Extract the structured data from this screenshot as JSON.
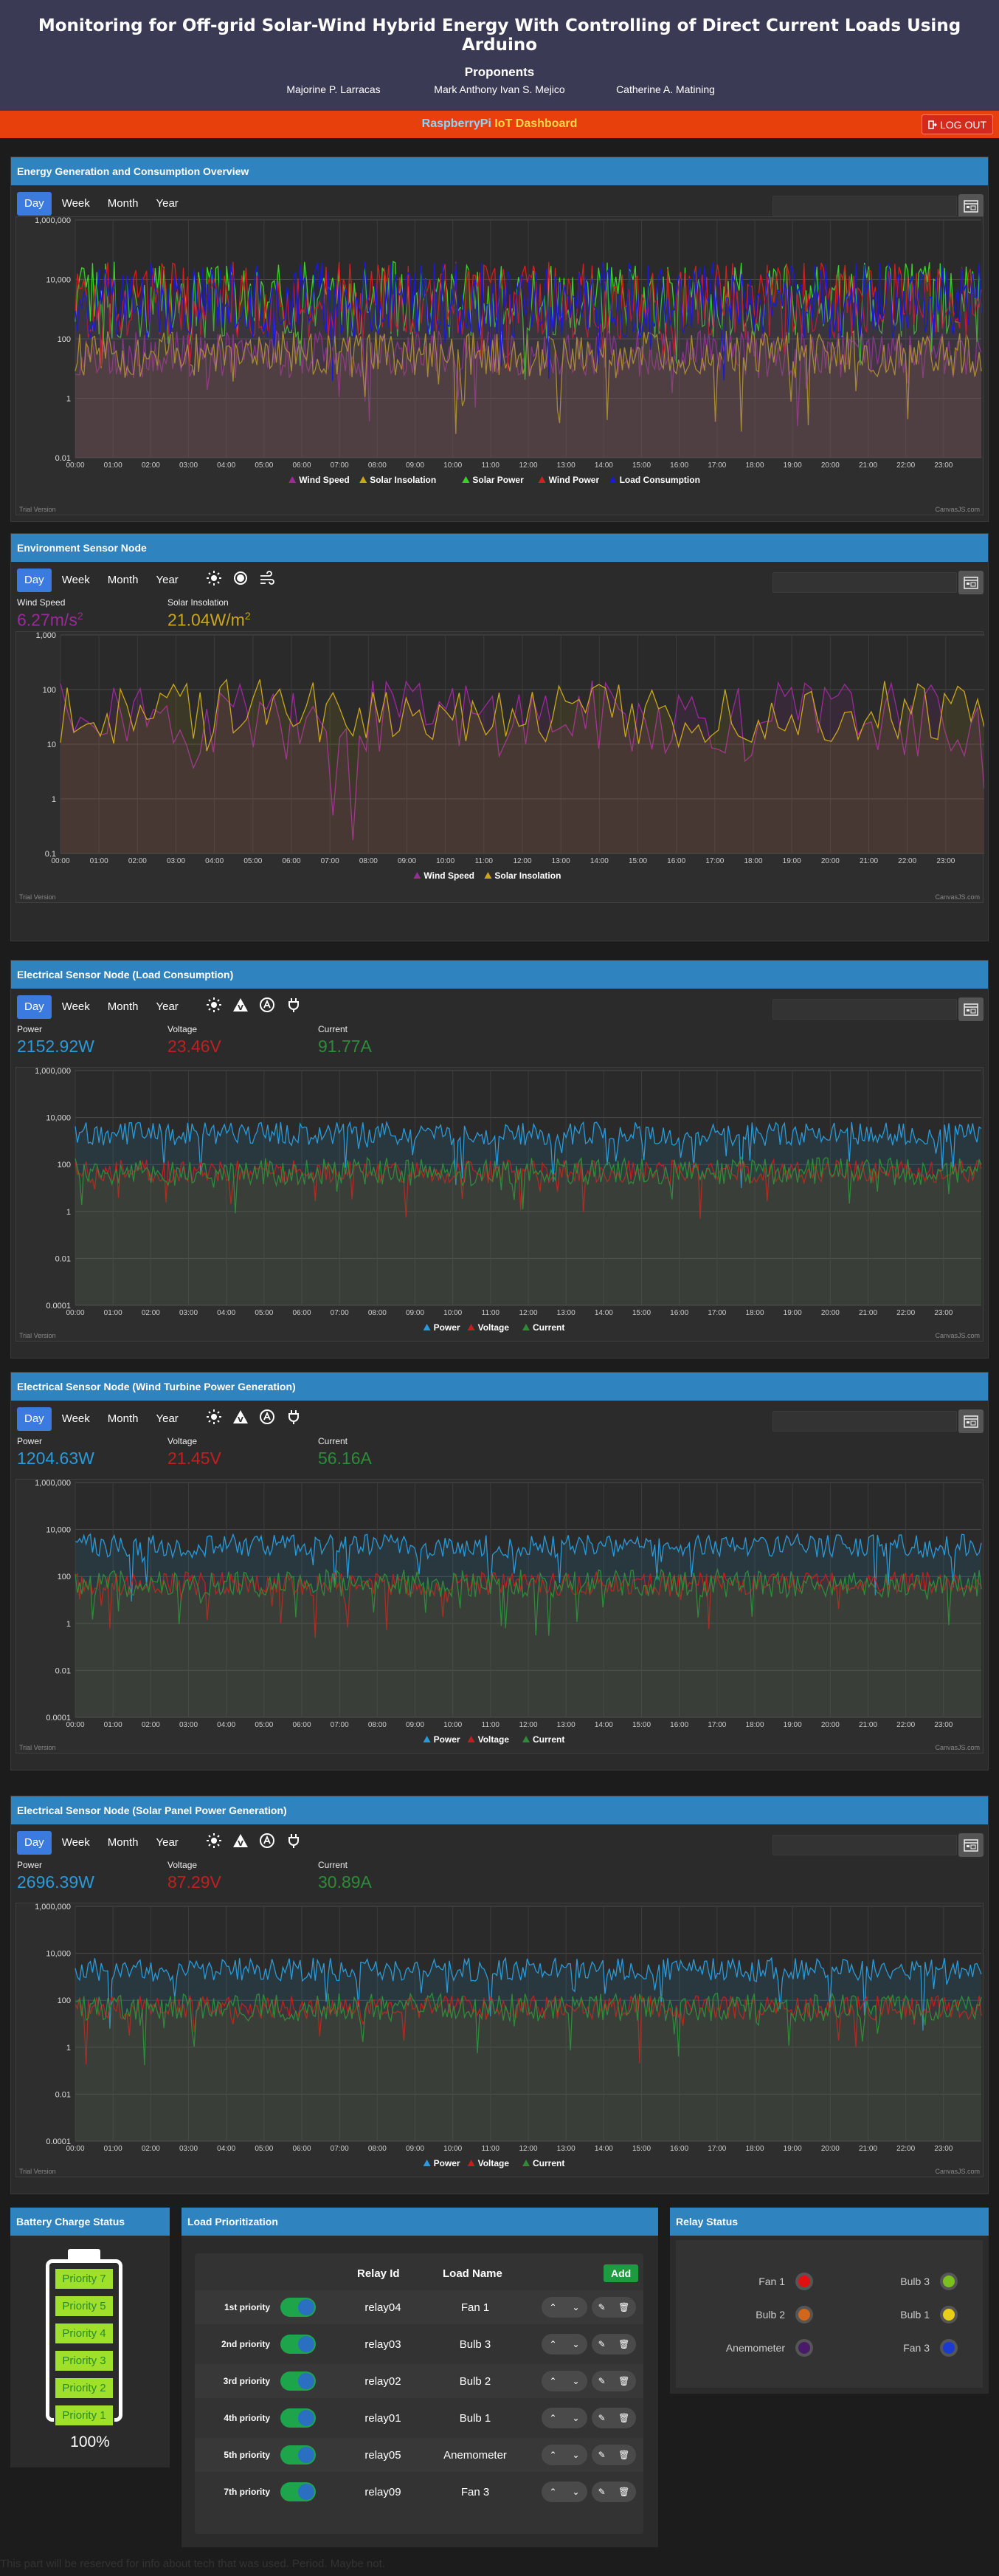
{
  "header": {
    "title": "Monitoring for Off-grid Solar-Wind Hybrid Energy With Controlling of Direct Current Loads Using Arduino",
    "proponents_title": "Proponents",
    "proponents": [
      "Majorine P. Larracas",
      "Mark Anthony Ivan S. Mejico",
      "Catherine A. Matining"
    ]
  },
  "navbar": {
    "brand_part1": "RaspberryPi",
    "brand_part2": " IoT Dashboard",
    "logout_label": "LOG OUT"
  },
  "tabs": [
    "Day",
    "Week",
    "Month",
    "Year"
  ],
  "chart_watermark": {
    "left": "Trial Version",
    "right": "CanvasJS.com"
  },
  "sections": {
    "overview": {
      "title": "Energy Generation and Consumption Overview"
    },
    "environment": {
      "title": "Environment Sensor Node",
      "readouts": [
        {
          "label": "Wind Speed",
          "value": "6.27m/s",
          "sup": "2",
          "color": "#9b2a9b"
        },
        {
          "label": "Solar Insolation",
          "value": "21.04W/m",
          "sup": "2",
          "color": "#c9a61d"
        }
      ]
    },
    "load": {
      "title": "Electrical Sensor Node (Load Consumption)",
      "readouts": [
        {
          "label": "Power",
          "value": "2152.92W",
          "color": "#2a9ad8"
        },
        {
          "label": "Voltage",
          "value": "23.46V",
          "color": "#c21f1f"
        },
        {
          "label": "Current",
          "value": "91.77A",
          "color": "#2e8b3a"
        }
      ]
    },
    "wind": {
      "title": "Electrical Sensor Node (Wind Turbine Power Generation)",
      "readouts": [
        {
          "label": "Power",
          "value": "1204.63W",
          "color": "#2a9ad8"
        },
        {
          "label": "Voltage",
          "value": "21.45V",
          "color": "#c21f1f"
        },
        {
          "label": "Current",
          "value": "56.16A",
          "color": "#2e8b3a"
        }
      ]
    },
    "solar": {
      "title": "Electrical Sensor Node (Solar Panel Power Generation)",
      "readouts": [
        {
          "label": "Power",
          "value": "2696.39W",
          "color": "#2a9ad8"
        },
        {
          "label": "Voltage",
          "value": "87.29V",
          "color": "#c21f1f"
        },
        {
          "label": "Current",
          "value": "30.89A",
          "color": "#2e8b3a"
        }
      ]
    }
  },
  "battery": {
    "title": "Battery Charge Status",
    "cells": [
      "Priority 7",
      "Priority 5",
      "Priority 4",
      "Priority 3",
      "Priority 2",
      "Priority 1"
    ],
    "percent": "100%"
  },
  "load_prioritization": {
    "title": "Load Prioritization",
    "headers": {
      "relay_id": "Relay Id",
      "load_name": "Load Name"
    },
    "add_label": "Add",
    "rows": [
      {
        "priority": "1st priority",
        "relay_id": "relay04",
        "load_name": "Fan 1"
      },
      {
        "priority": "2nd priority",
        "relay_id": "relay03",
        "load_name": "Bulb 3"
      },
      {
        "priority": "3rd priority",
        "relay_id": "relay02",
        "load_name": "Bulb 2"
      },
      {
        "priority": "4th priority",
        "relay_id": "relay01",
        "load_name": "Bulb 1"
      },
      {
        "priority": "5th priority",
        "relay_id": "relay05",
        "load_name": "Anemometer"
      },
      {
        "priority": "7th priority",
        "relay_id": "relay09",
        "load_name": "Fan 3"
      }
    ]
  },
  "relay_status": {
    "title": "Relay Status",
    "relays": [
      {
        "name": "Fan 1",
        "color": "#e01010"
      },
      {
        "name": "Bulb 3",
        "color": "#7ac01e"
      },
      {
        "name": "Bulb 2",
        "color": "#d2671b"
      },
      {
        "name": "Bulb 1",
        "color": "#e8d01a"
      },
      {
        "name": "Anemometer",
        "color": "#4a1a6a"
      },
      {
        "name": "Fan 3",
        "color": "#1a3ad0"
      }
    ]
  },
  "footer_text": "This part will be reserved for info about tech that was used. Period. Maybe not.",
  "chart_data": [
    {
      "type": "area",
      "title": "Energy Generation and Consumption Overview",
      "y_scale": "log",
      "ylim": [
        0.01,
        1000000
      ],
      "y_ticks": [
        "0.01",
        "1",
        "100",
        "10,000",
        "1,000,000"
      ],
      "x_ticks": [
        "00:00",
        "01:00",
        "02:00",
        "03:00",
        "04:00",
        "05:00",
        "06:00",
        "07:00",
        "08:00",
        "09:00",
        "10:00",
        "11:00",
        "12:00",
        "13:00",
        "14:00",
        "15:00",
        "16:00",
        "17:00",
        "18:00",
        "19:00",
        "20:00",
        "21:00",
        "22:00",
        "23:00"
      ],
      "series": [
        {
          "name": "Wind Speed",
          "color": "#9b2a9b",
          "typical": 30,
          "spread": 0.8
        },
        {
          "name": "Solar Insolation",
          "color": "#c9a61d",
          "typical": 30,
          "spread": 0.8
        },
        {
          "name": "Solar Power",
          "color": "#3bd12a",
          "typical": 2000,
          "spread": 1.3
        },
        {
          "name": "Wind Power",
          "color": "#d21f1f",
          "typical": 2000,
          "spread": 1.3
        },
        {
          "name": "Load Consumption",
          "color": "#1a1ad8",
          "typical": 2000,
          "spread": 1.3
        }
      ]
    },
    {
      "type": "area",
      "title": "Environment Sensor Node",
      "y_scale": "log",
      "ylim": [
        0.1,
        1000
      ],
      "y_ticks": [
        "0.1",
        "1",
        "10",
        "100",
        "1,000"
      ],
      "x_ticks": [
        "00:00",
        "01:00",
        "02:00",
        "03:00",
        "04:00",
        "05:00",
        "06:00",
        "07:00",
        "08:00",
        "09:00",
        "10:00",
        "11:00",
        "12:00",
        "13:00",
        "14:00",
        "15:00",
        "16:00",
        "17:00",
        "18:00",
        "19:00",
        "20:00",
        "21:00",
        "22:00",
        "23:00"
      ],
      "series": [
        {
          "name": "Wind Speed",
          "color": "#9b2a9b",
          "typical": 30,
          "spread": 0.7
        },
        {
          "name": "Solar Insolation",
          "color": "#c9a61d",
          "typical": 40,
          "spread": 0.6
        }
      ]
    },
    {
      "type": "area",
      "title": "Electrical Sensor Node (Load Consumption)",
      "y_scale": "log",
      "ylim": [
        0.0001,
        1000000
      ],
      "y_ticks": [
        "0.0001",
        "0.01",
        "1",
        "100",
        "10,000",
        "1,000,000"
      ],
      "x_ticks": [
        "00:00",
        "01:00",
        "02:00",
        "03:00",
        "04:00",
        "05:00",
        "06:00",
        "07:00",
        "08:00",
        "09:00",
        "10:00",
        "11:00",
        "12:00",
        "13:00",
        "14:00",
        "15:00",
        "16:00",
        "17:00",
        "18:00",
        "19:00",
        "20:00",
        "21:00",
        "22:00",
        "23:00"
      ],
      "series": [
        {
          "name": "Power",
          "color": "#2a9ad8",
          "typical": 2000,
          "spread": 0.5
        },
        {
          "name": "Voltage",
          "color": "#c21f1f",
          "typical": 50,
          "spread": 0.5
        },
        {
          "name": "Current",
          "color": "#2e8b3a",
          "typical": 50,
          "spread": 0.6
        }
      ]
    },
    {
      "type": "area",
      "title": "Electrical Sensor Node (Wind Turbine Power Generation)",
      "y_scale": "log",
      "ylim": [
        0.0001,
        1000000
      ],
      "y_ticks": [
        "0.0001",
        "0.01",
        "1",
        "100",
        "10,000",
        "1,000,000"
      ],
      "x_ticks": [
        "00:00",
        "01:00",
        "02:00",
        "03:00",
        "04:00",
        "05:00",
        "06:00",
        "07:00",
        "08:00",
        "09:00",
        "10:00",
        "11:00",
        "12:00",
        "13:00",
        "14:00",
        "15:00",
        "16:00",
        "17:00",
        "18:00",
        "19:00",
        "20:00",
        "21:00",
        "22:00",
        "23:00"
      ],
      "series": [
        {
          "name": "Power",
          "color": "#2a9ad8",
          "typical": 2000,
          "spread": 0.5
        },
        {
          "name": "Voltage",
          "color": "#c21f1f",
          "typical": 50,
          "spread": 0.5
        },
        {
          "name": "Current",
          "color": "#2e8b3a",
          "typical": 50,
          "spread": 0.6
        }
      ]
    },
    {
      "type": "area",
      "title": "Electrical Sensor Node (Solar Panel Power Generation)",
      "y_scale": "log",
      "ylim": [
        0.0001,
        1000000
      ],
      "y_ticks": [
        "0.0001",
        "0.01",
        "1",
        "100",
        "10,000",
        "1,000,000"
      ],
      "x_ticks": [
        "00:00",
        "01:00",
        "02:00",
        "03:00",
        "04:00",
        "05:00",
        "06:00",
        "07:00",
        "08:00",
        "09:00",
        "10:00",
        "11:00",
        "12:00",
        "13:00",
        "14:00",
        "15:00",
        "16:00",
        "17:00",
        "18:00",
        "19:00",
        "20:00",
        "21:00",
        "22:00",
        "23:00"
      ],
      "series": [
        {
          "name": "Power",
          "color": "#2a9ad8",
          "typical": 2000,
          "spread": 0.5
        },
        {
          "name": "Voltage",
          "color": "#c21f1f",
          "typical": 50,
          "spread": 0.5
        },
        {
          "name": "Current",
          "color": "#2e8b3a",
          "typical": 50,
          "spread": 0.6
        }
      ]
    }
  ]
}
